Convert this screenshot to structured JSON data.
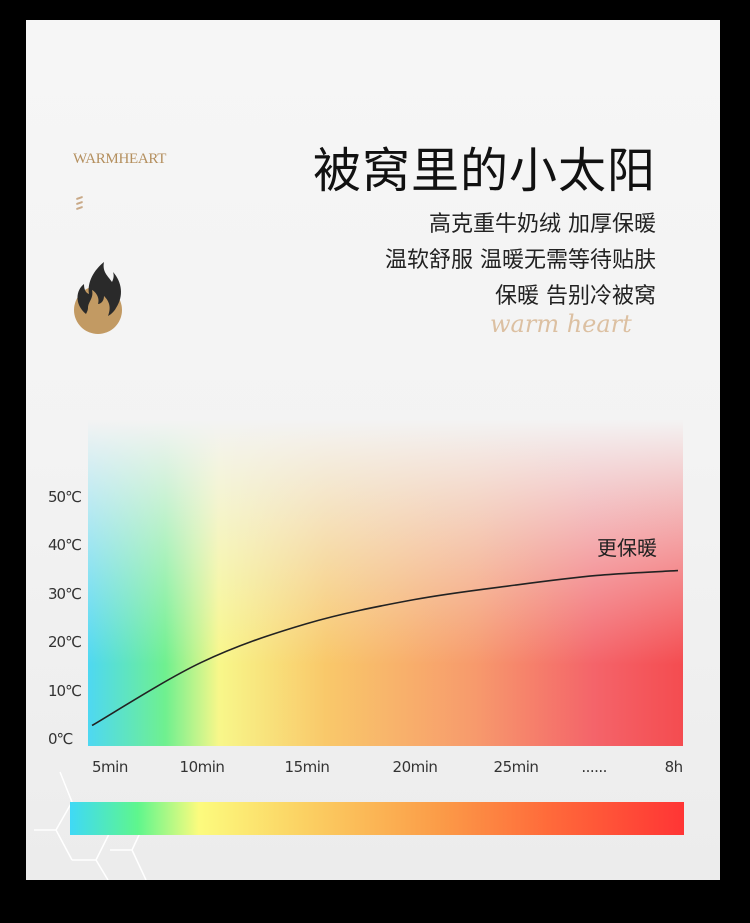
{
  "brand": "WARMHEART",
  "title": "被窝里的小太阳",
  "subtitle_lines": [
    "高克重牛奶绒 加厚保暖",
    "温软舒服 温暖无需等待贴肤",
    "保暖 告别冷被窝"
  ],
  "script_logo": "warm heart",
  "icons": {
    "brand_mark": "flame-icon"
  },
  "chart_data": {
    "type": "line",
    "categories": [
      "5min",
      "10min",
      "15min",
      "20min",
      "25min",
      "......",
      "8h"
    ],
    "values": [
      3,
      16,
      24,
      29,
      32,
      34,
      35
    ],
    "yticks": [
      "50℃",
      "40℃",
      "30℃",
      "20℃",
      "10℃",
      "0℃"
    ],
    "ylim": [
      0,
      50
    ],
    "annotation": "更保暖",
    "grid": false,
    "line_color": "#222222",
    "gradient_colors": [
      "#3fd9f6",
      "#5ef68d",
      "#fcfb7e",
      "#fbd163",
      "#fb9c48",
      "#ff6a3a",
      "#ff3535"
    ]
  }
}
